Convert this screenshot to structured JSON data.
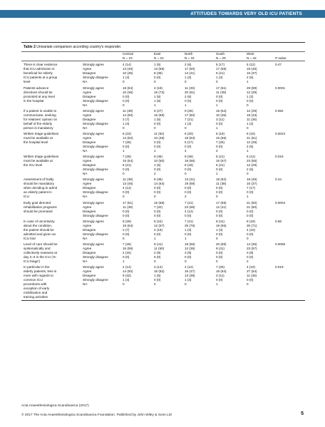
{
  "header": {
    "title": "ATTITUDES TOWARDS VERY OLD ICU PATIENTS"
  },
  "table": {
    "caption_label": "Table 2",
    "caption_text": "Univariate comparison according country's responder.",
    "regions": [
      "Central",
      "East",
      "North",
      "South",
      "West"
    ],
    "ns": [
      "N = 23",
      "N = 22",
      "N = 34",
      "N = 29",
      "N = 42"
    ],
    "pvalue_header": "P-value",
    "groups": [
      {
        "q": [
          "There is clear evidence",
          "that ICU admission is",
          "beneficial for elderly",
          "ICU patients at a group",
          "level"
        ],
        "rows": [
          [
            "Strongly agree",
            "4 (14)",
            "1 (5)",
            "2 (6)",
            "5 (17)",
            "5 (12)",
            "0.47"
          ],
          [
            "Agree",
            "13 (46)",
            "13 (59)",
            "17 (50)",
            "17 (59)",
            "19 (46)",
            ""
          ],
          [
            "Disagree",
            "10 (36)",
            "8 (36)",
            "14 (41)",
            "6 (21)",
            "15 (37)",
            ""
          ],
          [
            "Strongly disagree",
            "1 (4)",
            "0 (0)",
            "1 (3)",
            "1 (3)",
            "2 (5)",
            ""
          ],
          [
            "NA",
            "0",
            "0",
            "0",
            "0",
            "1",
            ""
          ]
        ]
      },
      {
        "q": [
          "Patients advance",
          "directives should be",
          "promoted at any level",
          "in the hospital"
        ],
        "rows": [
          [
            "Strongly agree",
            "18 (64)",
            "4 (18)",
            "11 (33)",
            "17 (61)",
            "29 (69)",
            "0.0001"
          ],
          [
            "Agree",
            "10 (36)",
            "16 (73)",
            "20 (61)",
            "11 (39)",
            "12 (29)",
            ""
          ],
          [
            "Disagree",
            "0 (0)",
            "1 (5)",
            "2 (6)",
            "0 (0)",
            "1 (2)",
            ""
          ],
          [
            "Strongly disagree",
            "0 (0)",
            "1 (5)",
            "0 (0)",
            "0 (0)",
            "0 (0)",
            ""
          ],
          [
            "NA",
            "0",
            "1",
            "1",
            "1",
            "0",
            ""
          ]
        ]
      },
      {
        "q": [
          "If a patient is unable to",
          "communicate, seeking",
          "for relatives' opinion on",
          "behalf of the elderly",
          "person is mandatory"
        ],
        "rows": [
          [
            "Strongly agree",
            "11 (39)",
            "6 (27)",
            "9 (26)",
            "15 (54)",
            "12 (29)",
            "0.082"
          ],
          [
            "Agree",
            "14 (50)",
            "15 (68)",
            "17 (50)",
            "10 (36)",
            "18 (43)",
            ""
          ],
          [
            "Disagree",
            "2 (7)",
            "1 (5)",
            "7 (21)",
            "3 (11)",
            "11 (26)",
            ""
          ],
          [
            "Strongly disagree",
            "1 (4)",
            "0 (0)",
            "1 (3)",
            "0 (0)",
            "1 (2)",
            ""
          ],
          [
            "NA",
            "0",
            "0",
            "0",
            "1",
            "0",
            ""
          ]
        ]
      },
      {
        "q": [
          "Written triage guidelines",
          "must be available at",
          "the hospital level"
        ],
        "rows": [
          [
            "Strongly agree",
            "6 (22)",
            "11 (52)",
            "6 (20)",
            "5 (19)",
            "6 (15)",
            "0.0024"
          ],
          [
            "Agree",
            "14 (52)",
            "10 (48)",
            "19 (63)",
            "15 (56)",
            "21 (51)",
            ""
          ],
          [
            "Disagree",
            "7 (26)",
            "0 (0)",
            "5 (17)",
            "7 (26)",
            "12 (29)",
            ""
          ],
          [
            "Strongly disagree",
            "0 (0)",
            "0 (0)",
            "0 (0)",
            "0 (0)",
            "2 (5)",
            ""
          ],
          [
            "NA",
            "1",
            "1",
            "4",
            "2",
            "1",
            ""
          ]
        ]
      },
      {
        "q": [
          "Written triage guidelines",
          "must be available at",
          "the ICU level"
        ],
        "rows": [
          [
            "Strongly agree",
            "7 (25)",
            "9 (45)",
            "9 (26)",
            "6 (21)",
            "5 (12)",
            "0.016"
          ],
          [
            "Agree",
            "15 (54)",
            "10 (50)",
            "19 (56)",
            "16 (57)",
            "23 (55)",
            ""
          ],
          [
            "Disagree",
            "6 (21)",
            "1 (5)",
            "6 (18)",
            "6 (21)",
            "12 (29)",
            ""
          ],
          [
            "Strongly disagree",
            "0 (0)",
            "0 (0)",
            "0 (0)",
            "0 (0)",
            "2 (5)",
            ""
          ],
          [
            "NA",
            "0",
            "2",
            "0",
            "1",
            "0",
            ""
          ]
        ]
      },
      {
        "q": [
          "Assessment of frailty",
          "should be mandatory",
          "when deciding to admit",
          "an elderly patient in",
          "ICU"
        ],
        "rows": [
          [
            "Strongly agree",
            "11 (39)",
            "8 (36)",
            "13 (41)",
            "18 (62)",
            "19 (46)",
            "0.24"
          ],
          [
            "Agree",
            "13 (46)",
            "14 (64)",
            "19 (59)",
            "11 (38)",
            "15 (37)",
            ""
          ],
          [
            "Disagree",
            "4 (14)",
            "0 (0)",
            "0 (0)",
            "0 (0)",
            "7 (17)",
            ""
          ],
          [
            "Strongly disagree",
            "0 (0)",
            "0 (0)",
            "0 (0)",
            "0 (0)",
            "0 (0)",
            ""
          ],
          [
            "NA",
            "0",
            "0",
            "2",
            "0",
            "1",
            ""
          ]
        ]
      },
      {
        "q": [
          "Early goal directed",
          "rehabilitation programs",
          "should be promoted"
        ],
        "rows": [
          [
            "Strongly agree",
            "17 (61)",
            "15 (68)",
            "7 (21)",
            "17 (59)",
            "21 (50)",
            "0.0004"
          ],
          [
            "Agree",
            "11 (39)",
            "7 (32)",
            "23 (68)",
            "12 (41)",
            "21 (50)",
            ""
          ],
          [
            "Disagree",
            "0 (0)",
            "0 (0)",
            "4 (12)",
            "0 (0)",
            "0 (0)",
            ""
          ],
          [
            "Strongly disagree",
            "0 (0)",
            "0 (0)",
            "0 (0)",
            "0 (0)",
            "0 (0)",
            ""
          ]
        ]
      },
      {
        "q": [
          "In case of uncertainty",
          "about the condition,",
          "the patient should be",
          "admitted and given an",
          "ICU trial"
        ],
        "rows": [
          [
            "Strongly agree",
            "8 (29)",
            "5 (24)",
            "7 (21)",
            "9 (31)",
            "8 (19)",
            "0.58"
          ],
          [
            "Agree",
            "18 (64)",
            "12 (57)",
            "25 (76)",
            "19 (66)",
            "30 (71)",
            ""
          ],
          [
            "Disagree",
            "2 (7)",
            "4 (19)",
            "1 (3)",
            "1 (3)",
            "4 (10)",
            ""
          ],
          [
            "Strongly disagree",
            "0 (0)",
            "0 (0)",
            "0 (0)",
            "0 (0)",
            "0 (0)",
            ""
          ],
          [
            "NA",
            "0",
            "1",
            "1",
            "0",
            "0",
            ""
          ]
        ]
      },
      {
        "q": [
          "Level of care should be",
          "systematically and",
          "collectively reassess at",
          "day 2–3 in the ICU ('In",
          "ICU triage')"
        ],
        "rows": [
          [
            "Strongly agree",
            "7 (26)",
            "9 (41)",
            "19 (56)",
            "20 (69)",
            "14 (35)",
            "0.0058"
          ],
          [
            "Agree",
            "16 (59)",
            "11 (50)",
            "12 (35)",
            "9 (31)",
            "23 (57)",
            ""
          ],
          [
            "Disagree",
            "4 (15)",
            "2 (9)",
            "3 (9)",
            "0 (0)",
            "3 (8)",
            ""
          ],
          [
            "Strongly disagree",
            "0 (0)",
            "0 (0)",
            "0 (0)",
            "0 (0)",
            "0 (0)",
            ""
          ],
          [
            "NA",
            "1",
            "0",
            "0",
            "0",
            "2",
            ""
          ]
        ]
      },
      {
        "q": [
          "In particular in the",
          "elderly patients, less is",
          "more with regards to",
          "common ICU",
          "procedures with",
          "exception of early",
          "mobilization and",
          "training activities"
        ],
        "rows": [
          [
            "Strongly agree",
            "4 (14)",
            "3 (14)",
            "4 (12)",
            "7 (25)",
            "4 (10)",
            "0.019"
          ],
          [
            "Agree",
            "14 (50)",
            "18 (82)",
            "16 (47)",
            "18 (64)",
            "27 (64)",
            ""
          ],
          [
            "Disagree",
            "9 (32)",
            "1 (5)",
            "13 (38)",
            "3 (11)",
            "11 (26)",
            ""
          ],
          [
            "Strongly disagree",
            "1 (4)",
            "0 (0)",
            "1 (3)",
            "0 (0)",
            "0 (0)",
            ""
          ],
          [
            "NA",
            "0",
            "0",
            "0",
            "1",
            "0",
            ""
          ]
        ]
      }
    ]
  },
  "footer": {
    "journal": "Acta Anaesthesiologica Scandinavica (2017)",
    "copyright": "© 2017 The Acta Anaesthesiologica Scandinavica Foundation. Published by John Wiley & Sons Ltd",
    "page": "5"
  }
}
